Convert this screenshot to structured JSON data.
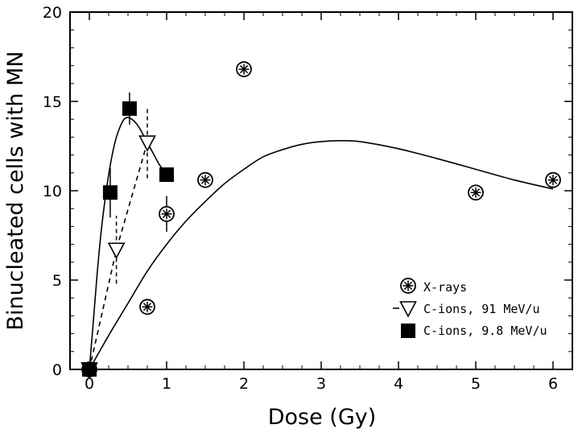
{
  "chart_data": {
    "type": "scatter",
    "xlabel": "Dose (Gy)",
    "ylabel": "Binucleated cells with MN",
    "xlim": [
      -0.25,
      6.25
    ],
    "ylim": [
      0,
      20
    ],
    "xticks": [
      0,
      1,
      2,
      3,
      4,
      5,
      6
    ],
    "yticks": [
      0,
      5,
      10,
      15,
      20
    ],
    "grid": false,
    "legend_position": "bottom-right",
    "series": [
      {
        "name": "X-rays",
        "marker": "circle-asterisk",
        "x": [
          0,
          0.75,
          1.0,
          1.5,
          2.0,
          5.0,
          6.0
        ],
        "y": [
          0,
          3.5,
          8.7,
          10.6,
          16.8,
          9.9,
          10.6
        ],
        "yerr": [
          0,
          0,
          1.0,
          0,
          0,
          0,
          0
        ],
        "fit": {
          "style": "solid",
          "x": [
            0,
            0.25,
            0.5,
            0.75,
            1.0,
            1.25,
            1.5,
            1.75,
            2.0,
            2.25,
            2.5,
            2.75,
            3.0,
            3.25,
            3.5,
            4.0,
            4.5,
            5.0,
            5.5,
            6.0
          ],
          "y": [
            0,
            1.9,
            3.7,
            5.5,
            7.0,
            8.3,
            9.4,
            10.4,
            11.2,
            11.9,
            12.3,
            12.6,
            12.75,
            12.8,
            12.75,
            12.35,
            11.8,
            11.2,
            10.6,
            10.1
          ]
        }
      },
      {
        "name": "C-ions, 91 MeV/u",
        "marker": "triangle-down-open",
        "x": [
          0,
          0.35,
          0.75
        ],
        "y": [
          0,
          6.7,
          12.7
        ],
        "yerr": [
          0,
          1.9,
          2.0
        ],
        "fit": {
          "style": "dashed",
          "x": [
            0,
            0.35,
            0.75
          ],
          "y": [
            0,
            6.7,
            12.7
          ]
        }
      },
      {
        "name": "C-ions,  9.8 MeV/u",
        "marker": "square-filled",
        "x": [
          0,
          0.27,
          0.52,
          1.0
        ],
        "y": [
          0,
          9.9,
          14.6,
          10.9
        ],
        "yerr": [
          0,
          1.4,
          0.9,
          0
        ],
        "fit": {
          "style": "solid",
          "x": [
            0,
            0.05,
            0.1,
            0.15,
            0.2,
            0.25,
            0.3,
            0.35,
            0.4,
            0.45,
            0.5,
            0.55,
            0.6,
            0.65,
            0.7,
            0.75,
            0.8,
            0.85,
            0.9,
            0.95,
            1.0
          ],
          "y": [
            0,
            2.6,
            5.3,
            7.6,
            9.4,
            10.9,
            12.1,
            13.0,
            13.6,
            14.0,
            14.1,
            14.0,
            13.8,
            13.5,
            13.1,
            12.7,
            12.3,
            11.9,
            11.5,
            11.2,
            10.9
          ]
        }
      }
    ]
  }
}
